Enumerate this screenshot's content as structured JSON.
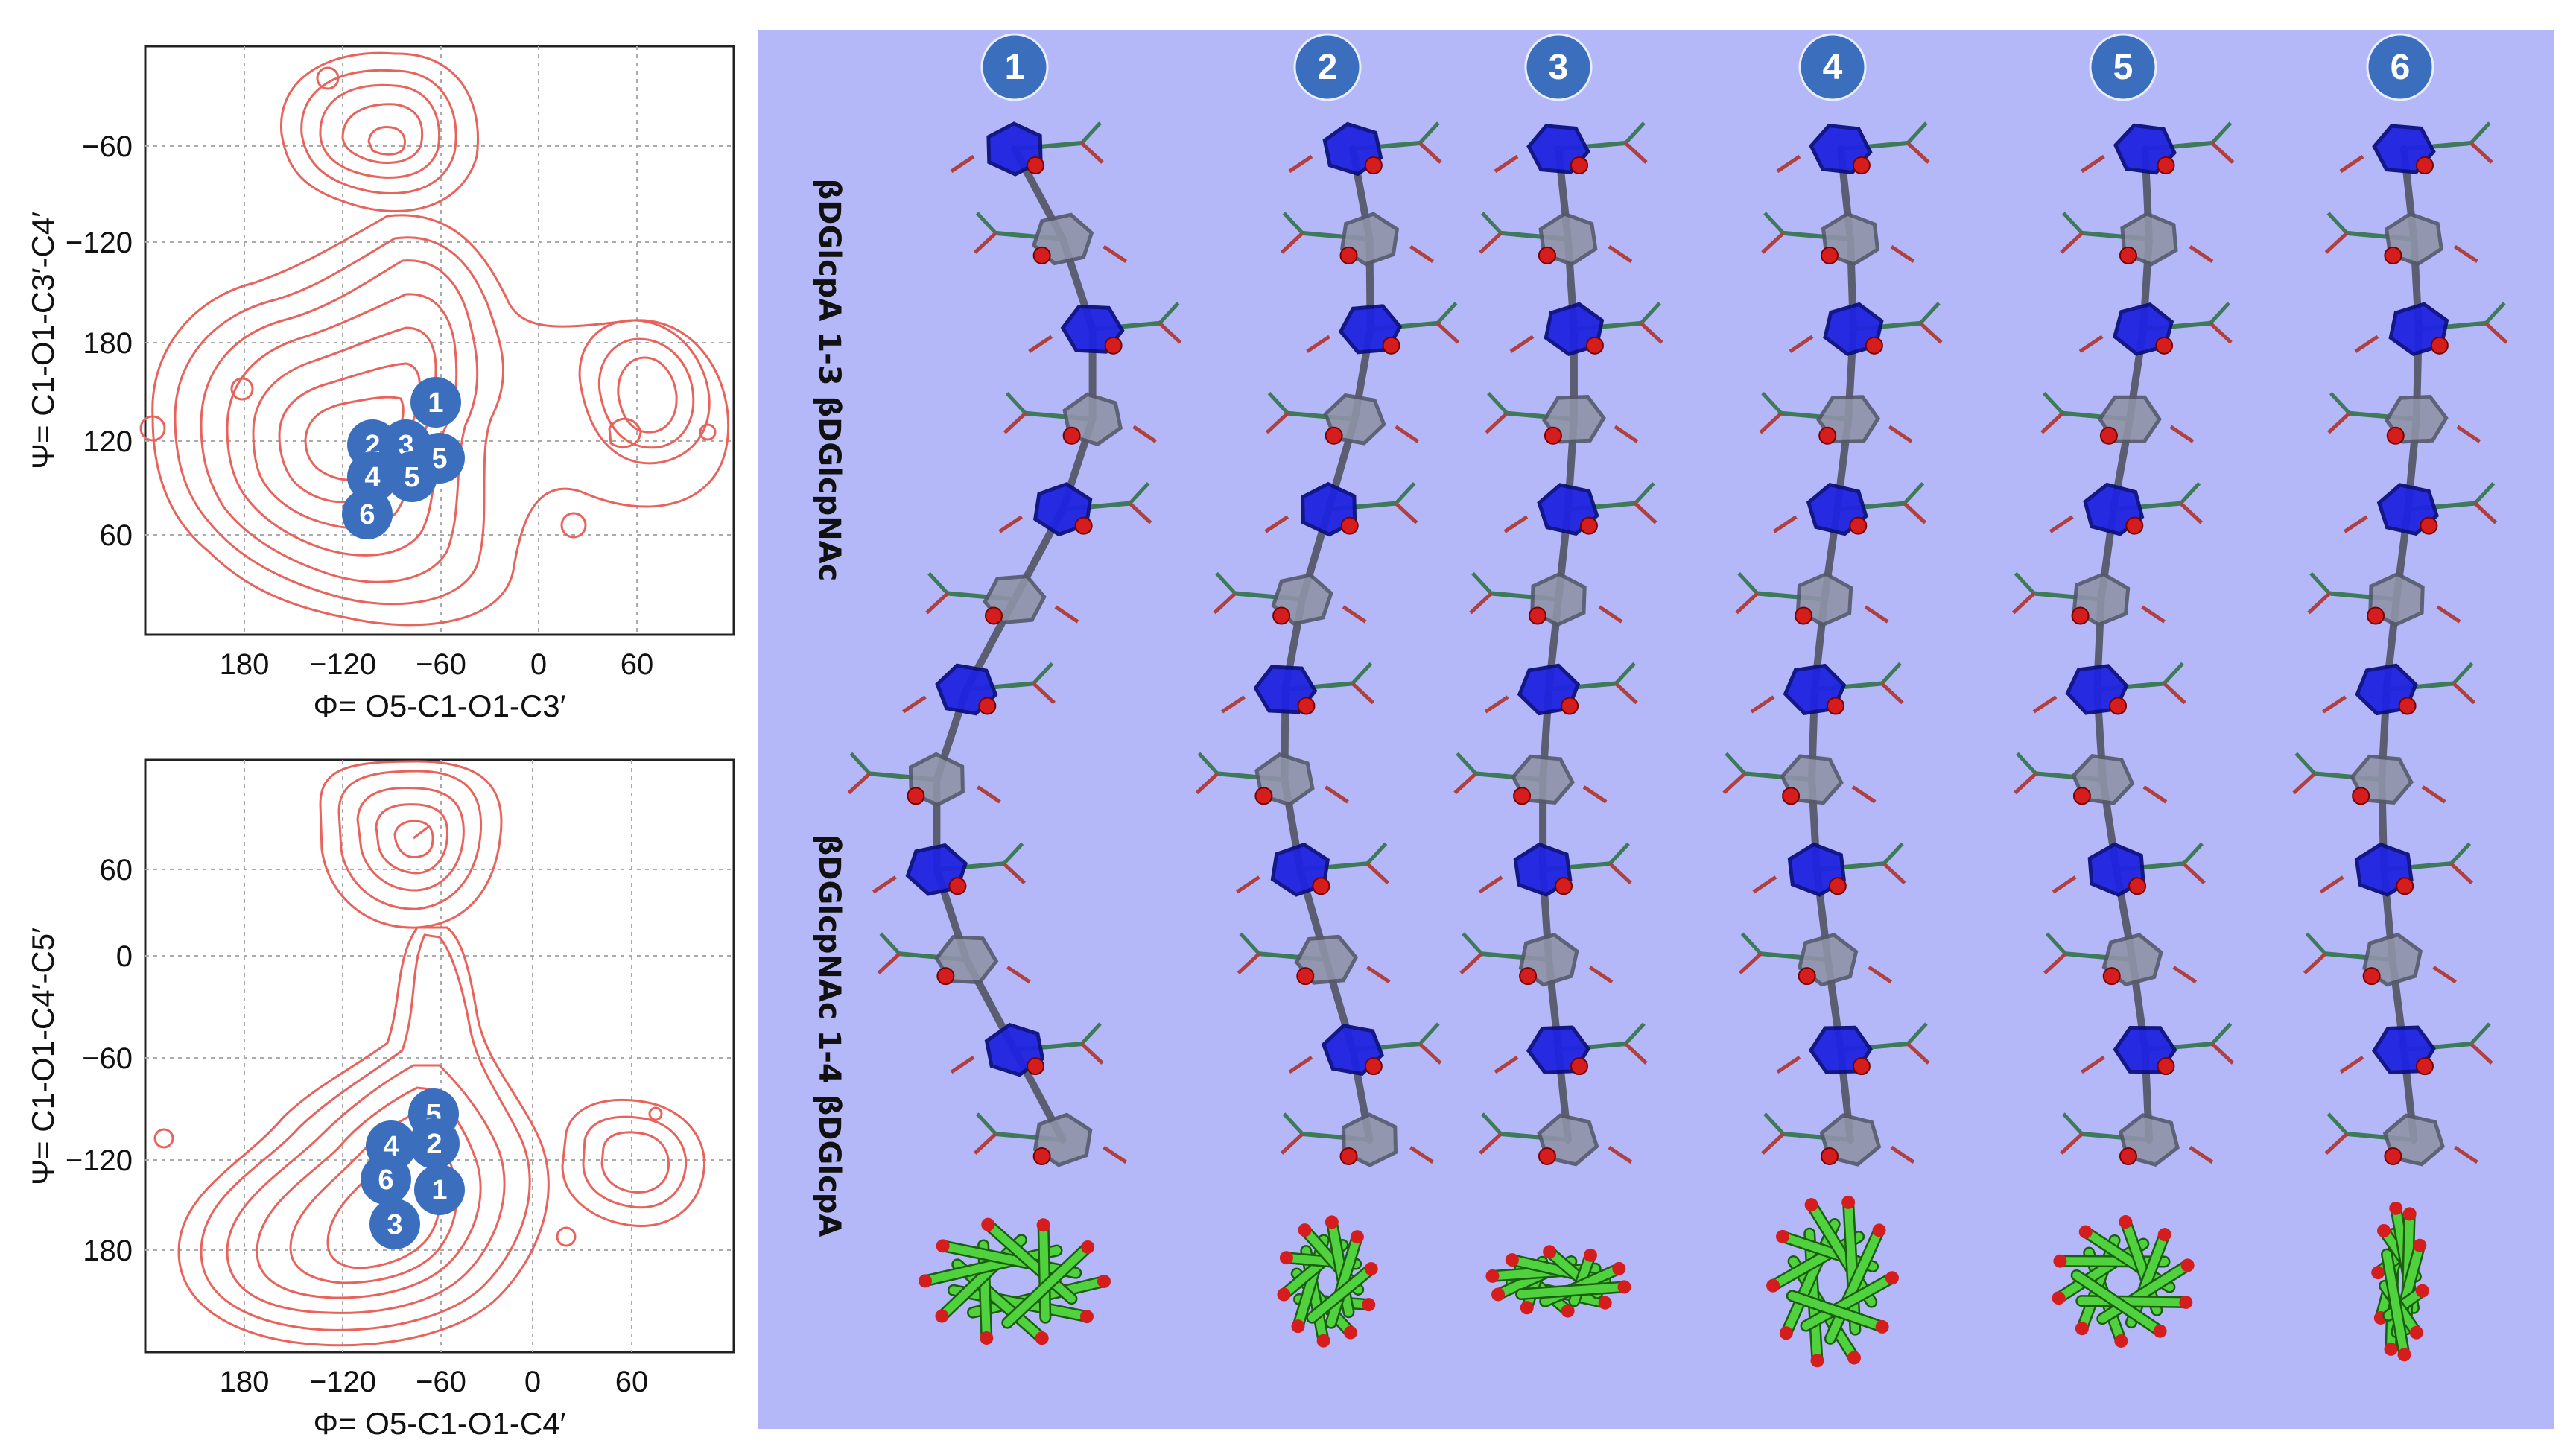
{
  "plots": [
    {
      "id": "top",
      "x_ticks": [
        "180",
        "−120",
        "−60",
        "0",
        "60"
      ],
      "y_ticks": [
        "−60",
        "−120",
        "180",
        "120",
        "60"
      ],
      "xlabel": "Φ= O5-C1-O1-C3′",
      "ylabel": "Ψ= C1-O1-C3′-C4′",
      "markers": [
        "1",
        "2",
        "3",
        "5",
        "4",
        "5",
        "6"
      ]
    },
    {
      "id": "bottom",
      "x_ticks": [
        "180",
        "−120",
        "−60",
        "0",
        "60"
      ],
      "y_ticks": [
        "60",
        "0",
        "−60",
        "−120",
        "180"
      ],
      "xlabel": "Φ= O5-C1-O1-C4′",
      "ylabel": "Ψ= C1-O1-C4′-C5′",
      "markers": [
        "5",
        "4",
        "2",
        "6",
        "1",
        "3"
      ]
    }
  ],
  "structure_panel": {
    "column_labels": [
      "1",
      "2",
      "3",
      "4",
      "5",
      "6"
    ],
    "side_label_top": "βDGlcpA 1-3 βDGlcpNAc",
    "side_label_bottom": "βDGlcpNAc 1-4 βDGlcpA"
  },
  "colors": {
    "panel_bg": "#b4b8f8",
    "badge": "#3b6fbe",
    "contour": "#e8635b",
    "ring_blue": "#1f24e0",
    "ring_grey": "#8f93a8",
    "stick_green": "#4fd23e",
    "oxygen": "#d61d1d"
  }
}
